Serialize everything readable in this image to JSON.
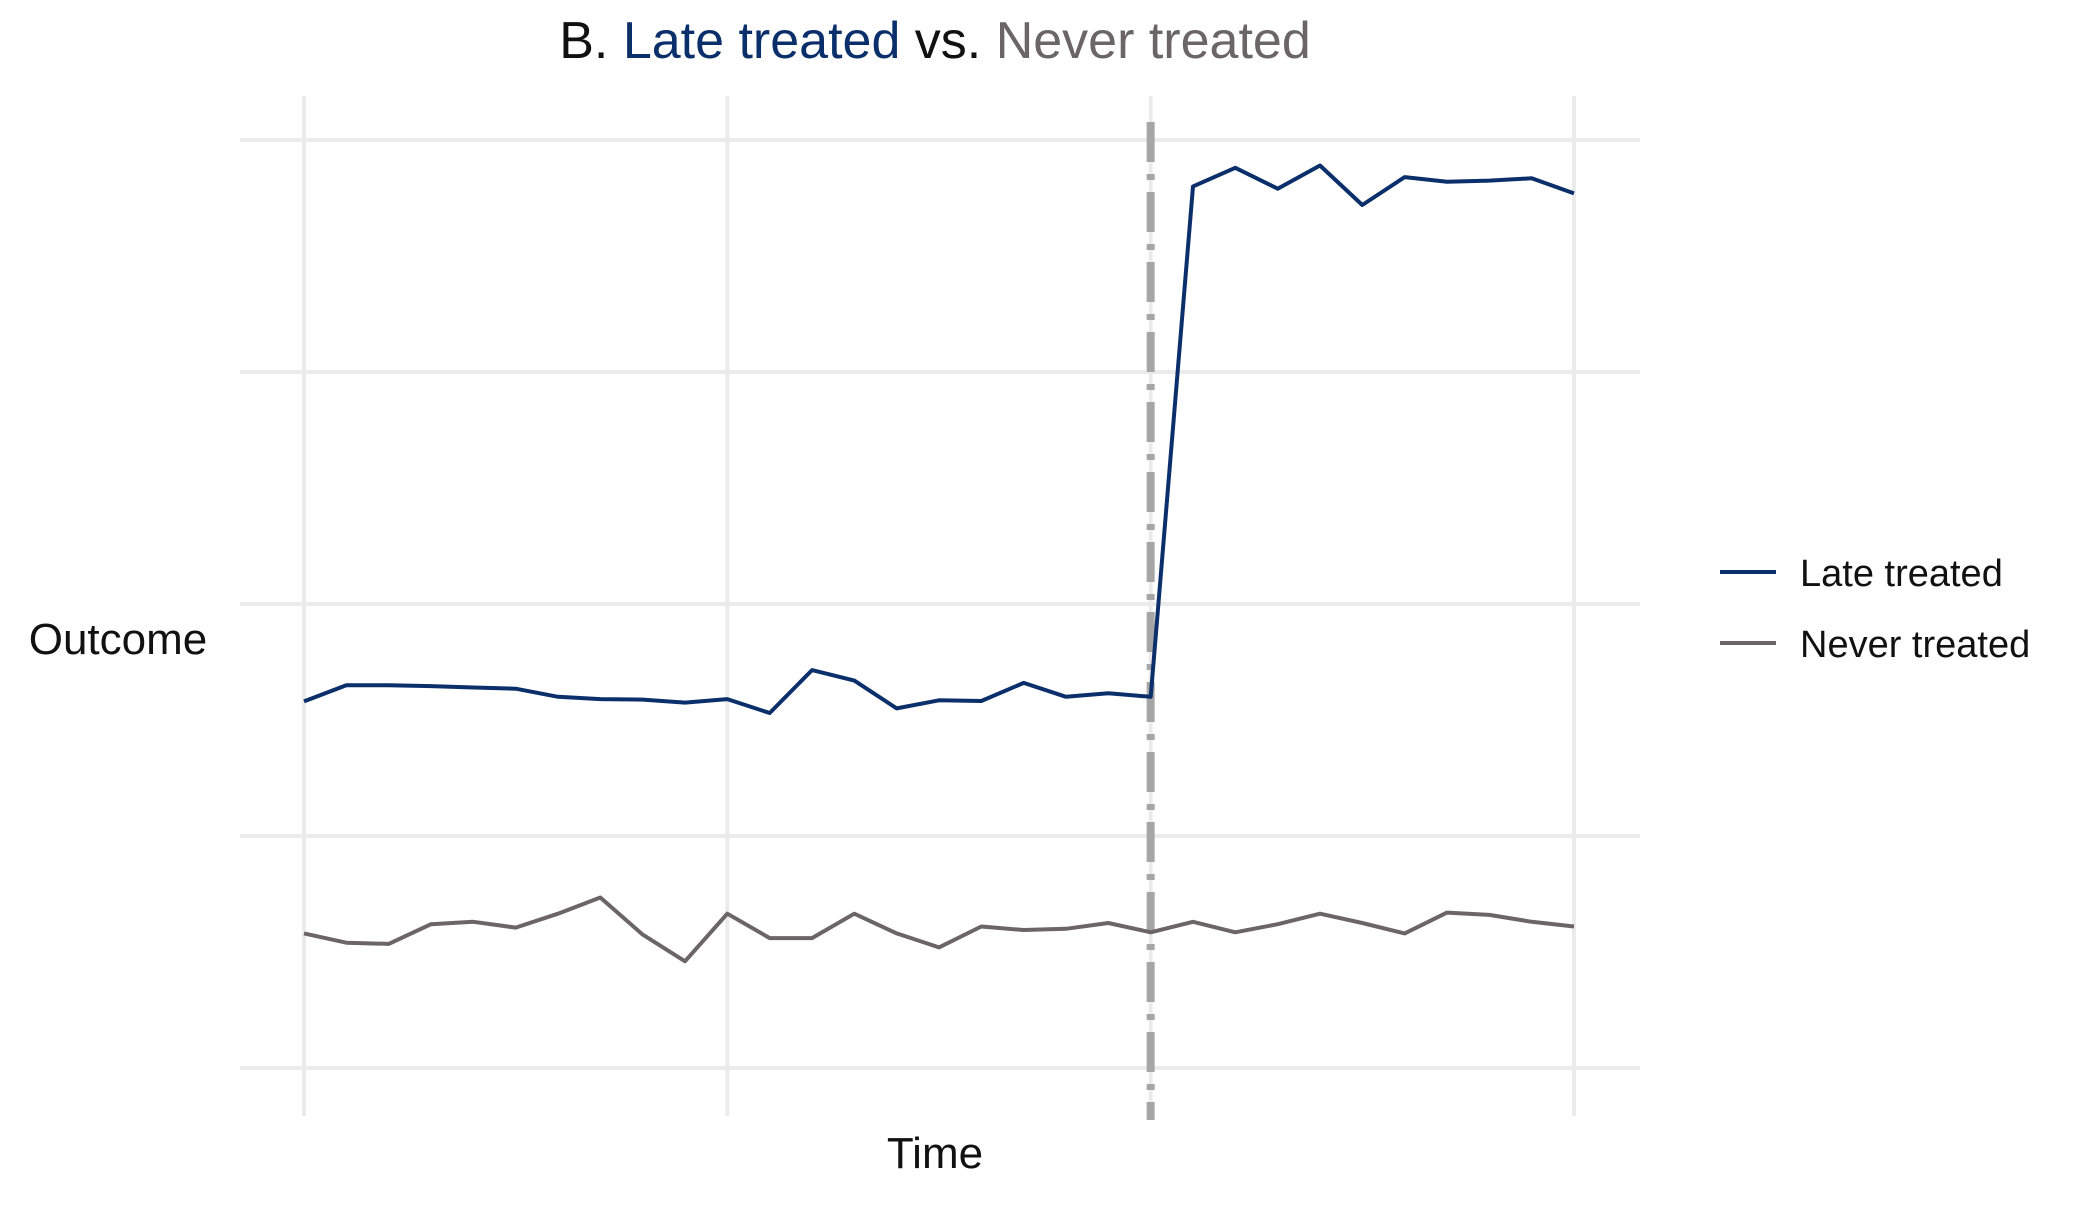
{
  "chart_data": {
    "type": "line",
    "title": {
      "prefix": "B. ",
      "part1": "Late treated",
      "mid": " vs. ",
      "part2": "Never treated"
    },
    "xlabel": "Time",
    "ylabel": "Outcome",
    "xlim": [
      0,
      30
    ],
    "ylim": [
      0,
      4
    ],
    "grid": true,
    "treatment_time": 20,
    "legend_placement": "right",
    "colors": {
      "late": "#0b2f6b",
      "never": "#6b6567",
      "treatment_line": "#a6a6a6",
      "grid": "#ebebeb",
      "title_prefix": "#111111"
    },
    "x": [
      0,
      1,
      2,
      3,
      4,
      5,
      6,
      7,
      8,
      9,
      10,
      11,
      12,
      13,
      14,
      15,
      16,
      17,
      18,
      19,
      20,
      21,
      22,
      23,
      24,
      25,
      26,
      27,
      28,
      29,
      30
    ],
    "series": [
      {
        "name": "Late treated",
        "color": "#0b2f6b",
        "values": [
          1.58,
          1.65,
          1.65,
          1.646,
          1.64,
          1.635,
          1.6,
          1.59,
          1.588,
          1.575,
          1.59,
          1.53,
          1.715,
          1.67,
          1.55,
          1.585,
          1.582,
          1.66,
          1.6,
          1.615,
          1.6,
          3.8,
          3.88,
          3.79,
          3.89,
          3.72,
          3.84,
          3.82,
          3.825,
          3.835,
          3.77
        ]
      },
      {
        "name": "Never treated",
        "color": "#6b6567",
        "values": [
          0.58,
          0.54,
          0.535,
          0.62,
          0.63,
          0.605,
          0.665,
          0.735,
          0.575,
          0.46,
          0.665,
          0.56,
          0.56,
          0.665,
          0.58,
          0.52,
          0.61,
          0.595,
          0.6,
          0.625,
          0.585,
          0.63,
          0.585,
          0.62,
          0.665,
          0.625,
          0.58,
          0.67,
          0.66,
          0.63,
          0.61
        ]
      }
    ],
    "legend": [
      {
        "label": "Late treated"
      },
      {
        "label": "Never treated"
      }
    ]
  }
}
